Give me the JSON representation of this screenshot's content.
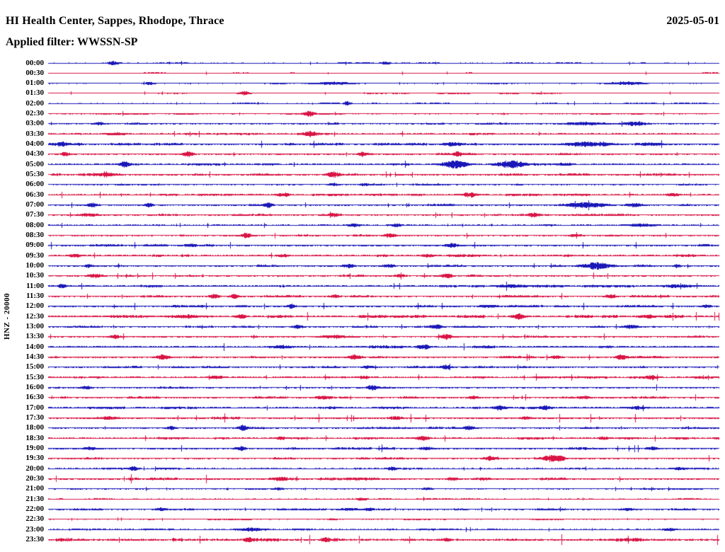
{
  "header": {
    "title": "HI Health Center, Sappes, Rhodope, Thrace",
    "date": "2025-05-01",
    "filter_label": "Applied filter: WWSSN-SP"
  },
  "y_axis_label": "HNZ - 20000",
  "colors": {
    "blue": "#1a17b8",
    "red": "#d91545",
    "text": "#000000",
    "background": "#ffffff"
  },
  "chart_data": {
    "type": "line",
    "subtype": "helicorder-seismogram",
    "title": "HI Health Center, Sappes, Rhodope, Thrace",
    "date": "2025-05-01",
    "filter": "WWSSN-SP",
    "ylabel": "HNZ - 20000",
    "channel": "HNZ",
    "amplitude_scale": 20000,
    "minutes_per_row": 30,
    "rows_count": 48,
    "legend": "events are [position_fraction_of_row, amplitude_px, width_px]",
    "rows": [
      {
        "time": "00:00",
        "color": "blue",
        "noise": 0.55,
        "events": [
          [
            0.097,
            2.5,
            10
          ],
          [
            0.503,
            2,
            8
          ]
        ]
      },
      {
        "time": "00:30",
        "color": "red",
        "noise": 0.5,
        "events": []
      },
      {
        "time": "01:00",
        "color": "blue",
        "noise": 0.55,
        "events": [
          [
            0.15,
            2,
            8
          ],
          [
            0.425,
            1.8,
            34
          ],
          [
            0.86,
            1.8,
            30
          ]
        ]
      },
      {
        "time": "01:30",
        "color": "red",
        "noise": 0.5,
        "events": [
          [
            0.292,
            2.5,
            10
          ]
        ]
      },
      {
        "time": "02:00",
        "color": "blue",
        "noise": 0.55,
        "events": [
          [
            0.445,
            3,
            6
          ]
        ]
      },
      {
        "time": "02:30",
        "color": "red",
        "noise": 0.6,
        "events": [
          [
            0.389,
            3.5,
            10
          ]
        ]
      },
      {
        "time": "03:00",
        "color": "blue",
        "noise": 0.8,
        "events": [
          [
            0.076,
            2,
            10
          ],
          [
            0.8,
            2,
            36
          ],
          [
            0.875,
            2.5,
            18
          ]
        ]
      },
      {
        "time": "03:30",
        "color": "red",
        "noise": 0.9,
        "events": [
          [
            0.1,
            1.5,
            20
          ],
          [
            0.39,
            3.5,
            12
          ]
        ]
      },
      {
        "time": "04:00",
        "color": "blue",
        "noise": 1.15,
        "events": [
          [
            0.02,
            2.5,
            10
          ],
          [
            0.6,
            2.5,
            14
          ],
          [
            0.805,
            2.5,
            44
          ],
          [
            0.9,
            2,
            18
          ]
        ]
      },
      {
        "time": "04:30",
        "color": "red",
        "noise": 1.0,
        "events": [
          [
            0.025,
            3,
            8
          ],
          [
            0.208,
            3.5,
            10
          ],
          [
            0.468,
            3,
            8
          ],
          [
            0.61,
            2.5,
            8
          ]
        ]
      },
      {
        "time": "05:00",
        "color": "blue",
        "noise": 1.0,
        "events": [
          [
            0.113,
            3.5,
            10
          ],
          [
            0.605,
            5,
            24
          ],
          [
            0.69,
            5,
            28
          ],
          [
            0.77,
            2,
            12
          ]
        ]
      },
      {
        "time": "05:30",
        "color": "red",
        "noise": 1.05,
        "events": [
          [
            0.085,
            2,
            26
          ],
          [
            0.424,
            4,
            12
          ]
        ]
      },
      {
        "time": "06:00",
        "color": "blue",
        "noise": 0.7,
        "events": [
          [
            0.425,
            1.5,
            10
          ],
          [
            0.47,
            1.5,
            8
          ]
        ]
      },
      {
        "time": "06:30",
        "color": "red",
        "noise": 1.0,
        "events": [
          [
            0.35,
            2.5,
            12
          ],
          [
            0.628,
            3,
            14
          ],
          [
            0.93,
            2,
            12
          ]
        ]
      },
      {
        "time": "07:00",
        "color": "blue",
        "noise": 1.0,
        "events": [
          [
            0.066,
            2.5,
            10
          ],
          [
            0.15,
            2.5,
            8
          ],
          [
            0.328,
            3,
            8
          ],
          [
            0.8,
            3.5,
            36
          ],
          [
            0.873,
            2.5,
            14
          ]
        ]
      },
      {
        "time": "07:30",
        "color": "red",
        "noise": 0.9,
        "events": [
          [
            0.06,
            2,
            20
          ],
          [
            0.425,
            2,
            10
          ],
          [
            0.723,
            2.5,
            10
          ]
        ]
      },
      {
        "time": "08:00",
        "color": "blue",
        "noise": 0.8,
        "events": [
          [
            0.455,
            1.8,
            12
          ],
          [
            0.52,
            2,
            8
          ],
          [
            0.885,
            1.8,
            26
          ]
        ]
      },
      {
        "time": "08:30",
        "color": "red",
        "noise": 0.9,
        "events": [
          [
            0.295,
            3.5,
            10
          ],
          [
            0.51,
            3,
            10
          ],
          [
            0.785,
            2,
            10
          ]
        ]
      },
      {
        "time": "09:00",
        "color": "blue",
        "noise": 1.05,
        "events": [
          [
            0.21,
            2,
            10
          ],
          [
            0.6,
            3,
            12
          ]
        ]
      },
      {
        "time": "09:30",
        "color": "red",
        "noise": 1.2,
        "events": [
          [
            0.04,
            2.5,
            10
          ],
          [
            0.35,
            2,
            10
          ],
          [
            0.565,
            2,
            12
          ]
        ]
      },
      {
        "time": "10:00",
        "color": "blue",
        "noise": 0.95,
        "events": [
          [
            0.06,
            2,
            8
          ],
          [
            0.447,
            2.5,
            12
          ],
          [
            0.507,
            2.5,
            10
          ],
          [
            0.818,
            5,
            26
          ],
          [
            0.937,
            2.5,
            6
          ]
        ]
      },
      {
        "time": "10:30",
        "color": "red",
        "noise": 1.0,
        "events": [
          [
            0.07,
            2.5,
            14
          ],
          [
            0.525,
            2,
            10
          ],
          [
            0.593,
            3,
            12
          ]
        ]
      },
      {
        "time": "11:00",
        "color": "blue",
        "noise": 1.15,
        "events": [
          [
            0.02,
            2.5,
            8
          ],
          [
            0.69,
            2,
            28
          ],
          [
            0.937,
            2,
            28
          ]
        ]
      },
      {
        "time": "11:30",
        "color": "red",
        "noise": 1.0,
        "events": [
          [
            0.247,
            3,
            10
          ],
          [
            0.277,
            3,
            8
          ],
          [
            0.427,
            2,
            10
          ],
          [
            0.838,
            3,
            10
          ]
        ]
      },
      {
        "time": "12:00",
        "color": "blue",
        "noise": 1.05,
        "events": [
          [
            0.362,
            2.5,
            8
          ],
          [
            0.655,
            1.5,
            18
          ],
          [
            0.98,
            2,
            8
          ]
        ]
      },
      {
        "time": "12:30",
        "color": "red",
        "noise": 1.45,
        "events": [
          [
            0.207,
            2,
            28
          ],
          [
            0.287,
            2.5,
            10
          ],
          [
            0.7,
            3.5,
            12
          ],
          [
            0.893,
            2,
            16
          ]
        ]
      },
      {
        "time": "13:00",
        "color": "blue",
        "noise": 0.8,
        "events": [
          [
            0.372,
            2.5,
            10
          ],
          [
            0.578,
            3,
            12
          ],
          [
            0.868,
            2.5,
            14
          ]
        ]
      },
      {
        "time": "13:30",
        "color": "red",
        "noise": 1.0,
        "events": [
          [
            0.1,
            2.5,
            10
          ],
          [
            0.427,
            2,
            26
          ],
          [
            0.593,
            3.5,
            12
          ]
        ]
      },
      {
        "time": "14:00",
        "color": "blue",
        "noise": 1.35,
        "events": [
          [
            0.347,
            2,
            18
          ],
          [
            0.558,
            2.5,
            12
          ]
        ]
      },
      {
        "time": "14:30",
        "color": "red",
        "noise": 1.0,
        "events": [
          [
            0.17,
            3.5,
            12
          ],
          [
            0.457,
            3.5,
            12
          ],
          [
            0.757,
            2,
            10
          ],
          [
            0.853,
            3,
            10
          ]
        ]
      },
      {
        "time": "15:00",
        "color": "blue",
        "noise": 0.9,
        "events": [
          [
            0.477,
            2,
            10
          ],
          [
            0.593,
            3,
            10
          ]
        ]
      },
      {
        "time": "15:30",
        "color": "red",
        "noise": 1.05,
        "events": [
          [
            0.25,
            2,
            14
          ],
          [
            0.47,
            2,
            10
          ],
          [
            0.9,
            2.5,
            10
          ]
        ]
      },
      {
        "time": "16:00",
        "color": "blue",
        "noise": 0.9,
        "events": [
          [
            0.056,
            2.5,
            10
          ],
          [
            0.482,
            3,
            10
          ]
        ]
      },
      {
        "time": "16:30",
        "color": "red",
        "noise": 1.0,
        "events": [
          [
            0.41,
            2,
            12
          ],
          [
            0.633,
            2,
            10
          ],
          [
            0.8,
            2,
            10
          ]
        ]
      },
      {
        "time": "17:00",
        "color": "blue",
        "noise": 1.15,
        "events": [
          [
            0.672,
            3,
            12
          ],
          [
            0.742,
            2.5,
            10
          ],
          [
            0.877,
            2,
            18
          ]
        ]
      },
      {
        "time": "17:30",
        "color": "red",
        "noise": 1.35,
        "events": [
          [
            0.09,
            2,
            16
          ],
          [
            0.517,
            2,
            12
          ],
          [
            0.712,
            2,
            10
          ]
        ]
      },
      {
        "time": "18:00",
        "color": "blue",
        "noise": 0.9,
        "events": [
          [
            0.183,
            2.5,
            8
          ],
          [
            0.29,
            4,
            8
          ],
          [
            0.627,
            3,
            10
          ]
        ]
      },
      {
        "time": "18:30",
        "color": "red",
        "noise": 1.05,
        "events": [
          [
            0.347,
            2,
            10
          ],
          [
            0.558,
            3,
            12
          ],
          [
            0.828,
            2,
            10
          ]
        ]
      },
      {
        "time": "19:00",
        "color": "blue",
        "noise": 1.1,
        "events": [
          [
            0.062,
            2,
            12
          ],
          [
            0.287,
            2.5,
            10
          ],
          [
            0.563,
            2,
            12
          ],
          [
            0.9,
            2,
            10
          ]
        ]
      },
      {
        "time": "19:30",
        "color": "red",
        "noise": 0.9,
        "events": [
          [
            0.658,
            3,
            12
          ],
          [
            0.748,
            4,
            14
          ],
          [
            0.762,
            3.5,
            10
          ]
        ]
      },
      {
        "time": "20:00",
        "color": "blue",
        "noise": 0.8,
        "events": [
          [
            0.127,
            3,
            8
          ],
          [
            0.512,
            2.5,
            10
          ],
          [
            0.937,
            1.5,
            10
          ]
        ]
      },
      {
        "time": "20:30",
        "color": "red",
        "noise": 1.3,
        "events": [
          [
            0.347,
            2,
            12
          ],
          [
            0.602,
            2,
            10
          ]
        ]
      },
      {
        "time": "21:00",
        "color": "blue",
        "noise": 0.65,
        "events": [
          [
            0.342,
            1.5,
            10
          ],
          [
            0.567,
            1.5,
            8
          ]
        ]
      },
      {
        "time": "21:30",
        "color": "red",
        "noise": 0.6,
        "events": [
          [
            0.467,
            2.5,
            8
          ]
        ]
      },
      {
        "time": "22:00",
        "color": "blue",
        "noise": 0.8,
        "events": [
          [
            0.167,
            2,
            10
          ],
          [
            0.447,
            2,
            16
          ],
          [
            0.477,
            2,
            10
          ],
          [
            0.862,
            1.5,
            14
          ]
        ]
      },
      {
        "time": "22:30",
        "color": "red",
        "noise": 0.55,
        "events": [
          [
            0.423,
            1.2,
            8
          ]
        ]
      },
      {
        "time": "23:00",
        "color": "blue",
        "noise": 0.7,
        "events": [
          [
            0.302,
            2,
            18
          ],
          [
            0.927,
            2,
            10
          ]
        ]
      },
      {
        "time": "23:30",
        "color": "red",
        "noise": 1.75,
        "events": [
          [
            0.297,
            2.5,
            8
          ],
          [
            0.413,
            2,
            10
          ],
          [
            0.593,
            2,
            8
          ]
        ]
      }
    ]
  }
}
